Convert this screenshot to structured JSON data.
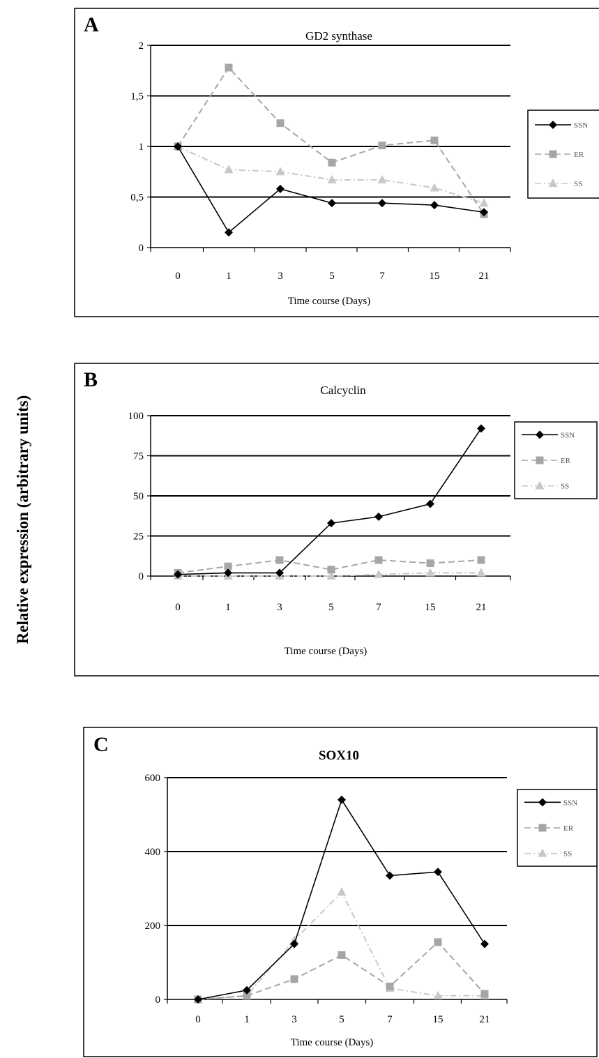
{
  "figure": {
    "ylabel": "Relative expression (arbitrary units)"
  },
  "colors": {
    "SSN": "#000000",
    "ER": "#a6a6a6",
    "SS": "#c8c8c8",
    "grid": "#000000"
  },
  "chart_data": [
    {
      "panel": "A",
      "type": "line",
      "title": "GD2 synthase",
      "xlabel": "Time course (Days)",
      "categories": [
        "0",
        "1",
        "3",
        "5",
        "7",
        "15",
        "21"
      ],
      "ylim": [
        0,
        2
      ],
      "yticks": [
        "0",
        "0,5",
        "1",
        "1,5",
        "2"
      ],
      "ytick_values": [
        0,
        0.5,
        1,
        1.5,
        2
      ],
      "grid": true,
      "legend": "right",
      "series": [
        {
          "name": "SSN",
          "marker": "diamond",
          "dash": "solid",
          "values": [
            1.0,
            0.15,
            0.58,
            0.44,
            0.44,
            0.42,
            0.35
          ]
        },
        {
          "name": "ER",
          "marker": "square",
          "dash": "dashed",
          "values": [
            1.0,
            1.78,
            1.23,
            0.84,
            1.01,
            1.06,
            0.33
          ]
        },
        {
          "name": "SS",
          "marker": "triangle",
          "dash": "dashdot",
          "values": [
            1.0,
            0.77,
            0.75,
            0.67,
            0.67,
            0.59,
            0.44
          ]
        }
      ]
    },
    {
      "panel": "B",
      "type": "line",
      "title": "Calcyclin",
      "xlabel": "Time course (Days)",
      "categories": [
        "0",
        "1",
        "3",
        "5",
        "7",
        "15",
        "21"
      ],
      "ylim": [
        0,
        100
      ],
      "yticks": [
        "0",
        "25",
        "50",
        "75",
        "100"
      ],
      "ytick_values": [
        0,
        25,
        50,
        75,
        100
      ],
      "grid": true,
      "legend": "right",
      "series": [
        {
          "name": "SSN",
          "marker": "diamond",
          "dash": "solid",
          "values": [
            1,
            2,
            2,
            33,
            37,
            45,
            92
          ]
        },
        {
          "name": "ER",
          "marker": "square",
          "dash": "dashed",
          "values": [
            2,
            6,
            10,
            4,
            10,
            8,
            10
          ]
        },
        {
          "name": "SS",
          "marker": "triangle",
          "dash": "dashdot",
          "values": [
            0,
            0,
            0,
            0,
            1,
            2,
            2
          ]
        }
      ]
    },
    {
      "panel": "C",
      "type": "line",
      "title": "SOX10",
      "xlabel": "Time course (Days)",
      "categories": [
        "0",
        "1",
        "3",
        "5",
        "7",
        "15",
        "21"
      ],
      "ylim": [
        0,
        600
      ],
      "yticks": [
        "0",
        "200",
        "400",
        "600"
      ],
      "ytick_values": [
        0,
        200,
        400,
        600
      ],
      "grid": true,
      "legend": "right",
      "series": [
        {
          "name": "SSN",
          "marker": "diamond",
          "dash": "solid",
          "values": [
            0,
            25,
            150,
            540,
            335,
            345,
            150
          ]
        },
        {
          "name": "ER",
          "marker": "square",
          "dash": "dashed",
          "values": [
            0,
            10,
            55,
            120,
            35,
            155,
            15
          ]
        },
        {
          "name": "SS",
          "marker": "triangle",
          "dash": "dashdot",
          "values": [
            0,
            10,
            160,
            290,
            30,
            10,
            10
          ]
        }
      ]
    }
  ]
}
